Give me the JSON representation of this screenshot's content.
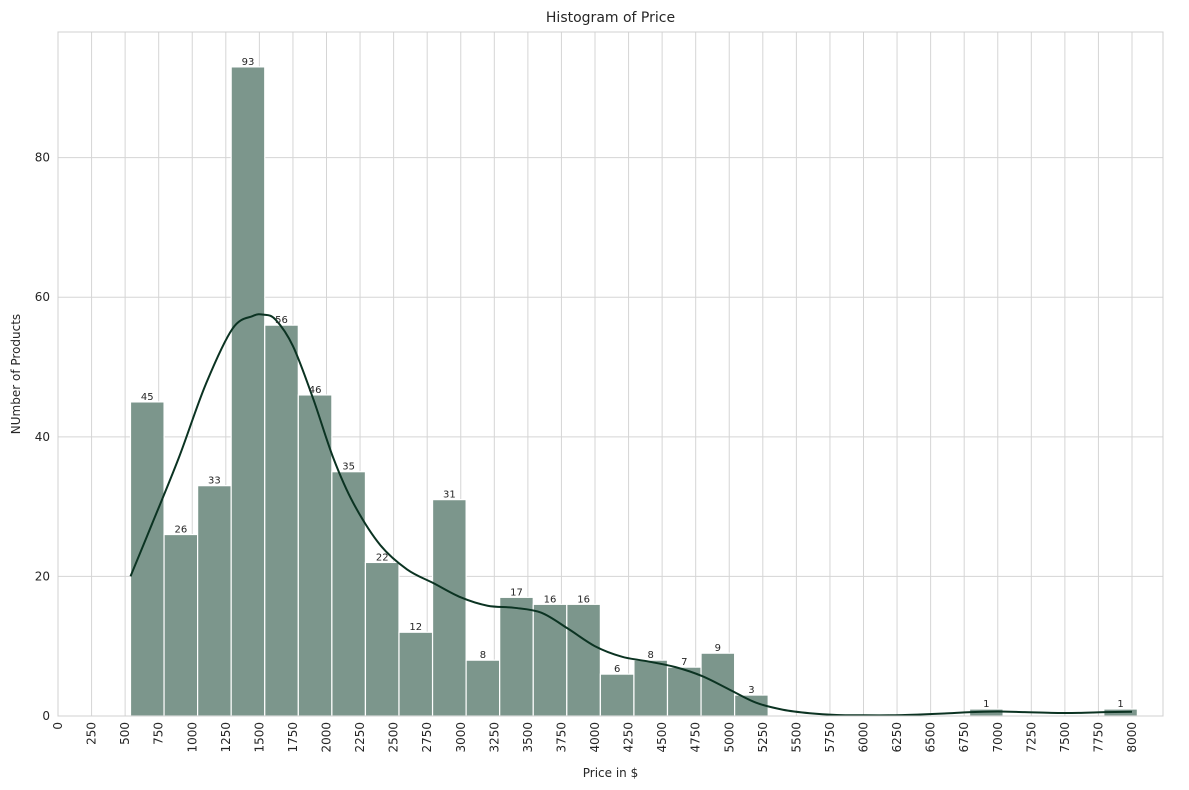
{
  "chart_data": {
    "type": "bar",
    "title": "Histogram of Price",
    "xlabel": "Price in $",
    "ylabel": "NUmber of Products",
    "xlim": [
      0,
      8000
    ],
    "ylim": [
      0,
      98
    ],
    "grid": true,
    "xticks": [
      "0",
      "250",
      "500",
      "750",
      "1000",
      "1250",
      "1500",
      "1750",
      "2000",
      "2250",
      "2500",
      "2750",
      "3000",
      "3250",
      "3500",
      "3750",
      "4000",
      "4250",
      "4500",
      "4750",
      "5000",
      "5250",
      "5500",
      "5750",
      "6000",
      "6250",
      "6500",
      "6750",
      "7000",
      "7250",
      "7500",
      "7750",
      "8000"
    ],
    "yticks": [
      "0",
      "20",
      "40",
      "60",
      "80"
    ],
    "bins": [
      {
        "start": 540,
        "end": 790,
        "count": 45
      },
      {
        "start": 790,
        "end": 1040,
        "count": 26
      },
      {
        "start": 1040,
        "end": 1290,
        "count": 33
      },
      {
        "start": 1290,
        "end": 1540,
        "count": 93
      },
      {
        "start": 1540,
        "end": 1790,
        "count": 56
      },
      {
        "start": 1790,
        "end": 2040,
        "count": 46
      },
      {
        "start": 2040,
        "end": 2290,
        "count": 35
      },
      {
        "start": 2290,
        "end": 2540,
        "count": 22
      },
      {
        "start": 2540,
        "end": 2790,
        "count": 12
      },
      {
        "start": 2790,
        "end": 3040,
        "count": 31
      },
      {
        "start": 3040,
        "end": 3290,
        "count": 8
      },
      {
        "start": 3290,
        "end": 3540,
        "count": 17
      },
      {
        "start": 3540,
        "end": 3790,
        "count": 16
      },
      {
        "start": 3790,
        "end": 4040,
        "count": 16
      },
      {
        "start": 4040,
        "end": 4290,
        "count": 6
      },
      {
        "start": 4290,
        "end": 4540,
        "count": 8
      },
      {
        "start": 4540,
        "end": 4790,
        "count": 7
      },
      {
        "start": 4790,
        "end": 5040,
        "count": 9
      },
      {
        "start": 5040,
        "end": 5290,
        "count": 3
      },
      {
        "start": 6790,
        "end": 7040,
        "count": 1
      },
      {
        "start": 7790,
        "end": 8040,
        "count": 1
      }
    ],
    "kde": {
      "x": [
        540,
        700,
        900,
        1100,
        1300,
        1450,
        1530,
        1620,
        1750,
        1900,
        2050,
        2200,
        2400,
        2600,
        2800,
        3000,
        3200,
        3400,
        3600,
        3800,
        4000,
        4200,
        4400,
        4600,
        4800,
        5000,
        5200,
        5400,
        5600,
        5800,
        6000,
        6200,
        6400,
        6600,
        6800,
        7000,
        7200,
        7400,
        7600,
        7800,
        8000
      ],
      "y": [
        20,
        27.5,
        37,
        47.5,
        55.5,
        57.3,
        57.5,
        56.8,
        53,
        45.5,
        37,
        30.5,
        24.5,
        21,
        19,
        17,
        15.8,
        15.5,
        14.8,
        12.5,
        10,
        8.5,
        7.8,
        7,
        5.7,
        3.8,
        1.9,
        0.9,
        0.4,
        0.15,
        0.1,
        0.1,
        0.2,
        0.35,
        0.55,
        0.65,
        0.55,
        0.45,
        0.45,
        0.55,
        0.6
      ]
    },
    "colors": {
      "bar": "#7c968c",
      "bar_edge": "#ffffff",
      "kde": "#0b3322",
      "grid": "#d5d5d5",
      "spine": "#d0d0d0"
    }
  }
}
